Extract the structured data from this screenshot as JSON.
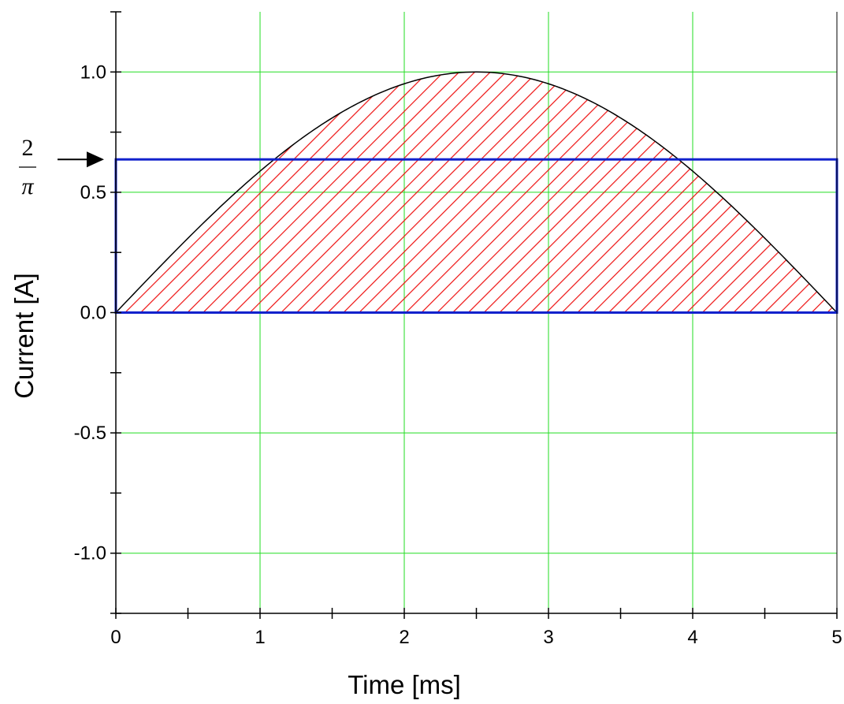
{
  "chart_data": {
    "type": "area",
    "xlabel": "Time [ms]",
    "ylabel": "Current [A]",
    "xlim": [
      0,
      5
    ],
    "ylim": [
      -1.25,
      1.25
    ],
    "x_ticks": [
      0,
      1,
      2,
      3,
      4,
      5
    ],
    "x_tick_labels": [
      "0",
      "1",
      "2",
      "3",
      "4",
      "5"
    ],
    "y_ticks": [
      -1.0,
      -0.5,
      0.0,
      0.5,
      1.0
    ],
    "y_tick_labels": [
      "-1.0",
      "-0.5",
      "0.0",
      "0.5",
      "1.0"
    ],
    "grid": true,
    "series": [
      {
        "x": [
          0,
          0.25,
          0.5,
          0.75,
          1,
          1.25,
          1.5,
          1.75,
          2,
          2.25,
          2.5,
          2.75,
          3,
          3.25,
          3.5,
          3.75,
          4,
          4.25,
          4.5,
          4.75,
          5
        ],
        "values": [
          0,
          0.156,
          0.309,
          0.454,
          0.588,
          0.707,
          0.809,
          0.891,
          0.951,
          0.988,
          1.0,
          0.988,
          0.951,
          0.891,
          0.809,
          0.707,
          0.588,
          0.454,
          0.309,
          0.156,
          0
        ],
        "fill": "hatched"
      }
    ],
    "rectangle": {
      "x": [
        0,
        5
      ],
      "y": [
        0,
        0.6366
      ]
    },
    "annotation": {
      "numerator": "2",
      "denominator": "π",
      "y": 0.6366
    }
  },
  "colors": {
    "grid": "#22dd22",
    "curve": "#000000",
    "hatch": "#ee1111",
    "rectangle": "#1122cc",
    "axis": "#000000"
  }
}
